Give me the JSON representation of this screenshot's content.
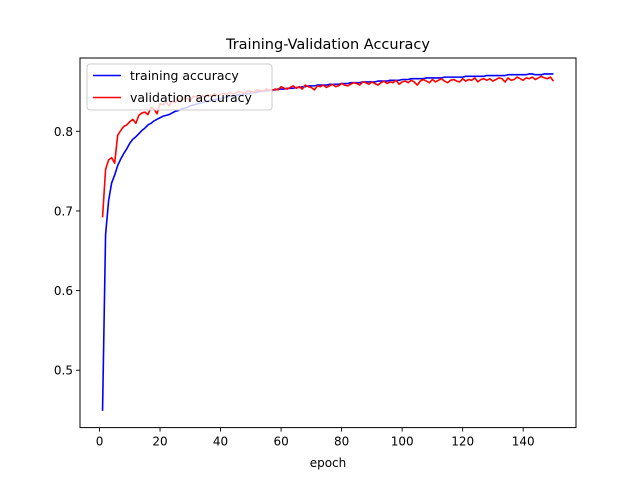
{
  "chart_data": {
    "type": "line",
    "title": "Training-Validation Accuracy",
    "xlabel": "epoch",
    "ylabel": "",
    "xlim": [
      -6.45,
      157.45
    ],
    "ylim": [
      0.428,
      0.892
    ],
    "xticks": [
      0,
      20,
      40,
      60,
      80,
      100,
      120,
      140
    ],
    "yticks": [
      0.5,
      0.6,
      0.7,
      0.8
    ],
    "xtick_labels": [
      "0",
      "20",
      "40",
      "60",
      "80",
      "100",
      "120",
      "140"
    ],
    "ytick_labels": [
      "0.5",
      "0.6",
      "0.7",
      "0.8"
    ],
    "grid": false,
    "legend_position": "top-left",
    "x_start": 1,
    "series": [
      {
        "name": "training accuracy",
        "color": "#0000ff",
        "values": [
          0.449,
          0.67,
          0.713,
          0.735,
          0.745,
          0.757,
          0.765,
          0.772,
          0.778,
          0.785,
          0.79,
          0.793,
          0.797,
          0.801,
          0.804,
          0.808,
          0.81,
          0.813,
          0.815,
          0.817,
          0.819,
          0.82,
          0.821,
          0.823,
          0.825,
          0.826,
          0.828,
          0.829,
          0.83,
          0.832,
          0.833,
          0.834,
          0.835,
          0.836,
          0.837,
          0.838,
          0.839,
          0.84,
          0.84,
          0.841,
          0.842,
          0.843,
          0.844,
          0.844,
          0.845,
          0.846,
          0.846,
          0.847,
          0.847,
          0.848,
          0.849,
          0.849,
          0.85,
          0.85,
          0.851,
          0.851,
          0.852,
          0.852,
          0.853,
          0.853,
          0.853,
          0.854,
          0.854,
          0.854,
          0.855,
          0.855,
          0.856,
          0.856,
          0.857,
          0.857,
          0.857,
          0.858,
          0.858,
          0.858,
          0.858,
          0.859,
          0.859,
          0.859,
          0.859,
          0.86,
          0.86,
          0.86,
          0.861,
          0.861,
          0.861,
          0.861,
          0.862,
          0.862,
          0.862,
          0.862,
          0.862,
          0.863,
          0.863,
          0.863,
          0.863,
          0.864,
          0.864,
          0.864,
          0.864,
          0.865,
          0.865,
          0.865,
          0.866,
          0.866,
          0.866,
          0.866,
          0.866,
          0.867,
          0.867,
          0.867,
          0.867,
          0.867,
          0.867,
          0.868,
          0.868,
          0.868,
          0.868,
          0.868,
          0.868,
          0.868,
          0.869,
          0.869,
          0.869,
          0.869,
          0.869,
          0.869,
          0.869,
          0.87,
          0.87,
          0.87,
          0.87,
          0.87,
          0.87,
          0.87,
          0.871,
          0.871,
          0.871,
          0.871,
          0.871,
          0.871,
          0.871,
          0.872,
          0.872,
          0.871,
          0.871,
          0.871,
          0.872,
          0.872,
          0.872,
          0.872
        ]
      },
      {
        "name": "validation accuracy",
        "color": "#ff0000",
        "values": [
          0.692,
          0.752,
          0.764,
          0.767,
          0.76,
          0.795,
          0.801,
          0.806,
          0.808,
          0.812,
          0.815,
          0.81,
          0.82,
          0.823,
          0.824,
          0.821,
          0.83,
          0.828,
          0.822,
          0.835,
          0.833,
          0.837,
          0.832,
          0.838,
          0.836,
          0.84,
          0.839,
          0.842,
          0.841,
          0.838,
          0.844,
          0.843,
          0.841,
          0.845,
          0.843,
          0.846,
          0.844,
          0.847,
          0.845,
          0.846,
          0.848,
          0.846,
          0.849,
          0.847,
          0.848,
          0.85,
          0.849,
          0.847,
          0.851,
          0.85,
          0.849,
          0.852,
          0.851,
          0.85,
          0.853,
          0.852,
          0.851,
          0.853,
          0.852,
          0.856,
          0.854,
          0.853,
          0.855,
          0.857,
          0.854,
          0.856,
          0.853,
          0.858,
          0.856,
          0.855,
          0.852,
          0.857,
          0.856,
          0.858,
          0.855,
          0.857,
          0.859,
          0.856,
          0.857,
          0.86,
          0.858,
          0.857,
          0.859,
          0.861,
          0.86,
          0.858,
          0.862,
          0.861,
          0.859,
          0.862,
          0.86,
          0.858,
          0.861,
          0.863,
          0.86,
          0.862,
          0.861,
          0.864,
          0.859,
          0.862,
          0.863,
          0.861,
          0.864,
          0.862,
          0.858,
          0.863,
          0.865,
          0.863,
          0.861,
          0.865,
          0.862,
          0.864,
          0.866,
          0.863,
          0.861,
          0.864,
          0.865,
          0.863,
          0.862,
          0.866,
          0.863,
          0.865,
          0.864,
          0.867,
          0.862,
          0.865,
          0.866,
          0.864,
          0.866,
          0.863,
          0.865,
          0.867,
          0.866,
          0.862,
          0.867,
          0.864,
          0.865,
          0.868,
          0.866,
          0.864,
          0.867,
          0.866,
          0.868,
          0.865,
          0.867,
          0.869,
          0.867,
          0.866,
          0.868,
          0.863
        ]
      }
    ]
  }
}
